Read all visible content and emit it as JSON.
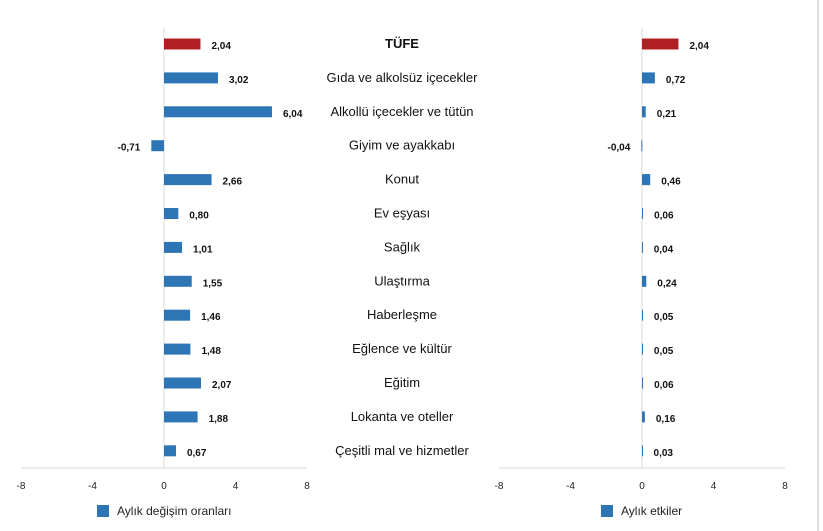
{
  "colors": {
    "highlight": "#B11F24",
    "bar": "#2E75B6",
    "axis": "#D9D9D9",
    "right_edge": "#BFBFBF"
  },
  "categories": [
    "TÜFE",
    "Gıda ve alkolsüz içecekler",
    "Alkollü içecekler ve tütün",
    "Giyim ve ayakkabı",
    "Konut",
    "Ev eşyası",
    "Sağlık",
    "Ulaştırma",
    "Haberleşme",
    "Eğlence ve kültür",
    "Eğitim",
    "Lokanta ve oteller",
    "Çeşitli mal ve hizmetler"
  ],
  "chart_data": [
    {
      "type": "bar",
      "orientation": "horizontal",
      "categories": [
        "TÜFE",
        "Gıda ve alkolsüz içecekler",
        "Alkollü içecekler ve tütün",
        "Giyim ve ayakkabı",
        "Konut",
        "Ev eşyası",
        "Sağlık",
        "Ulaştırma",
        "Haberleşme",
        "Eğlence ve kültür",
        "Eğitim",
        "Lokanta ve oteller",
        "Çeşitli mal ve hizmetler"
      ],
      "values": [
        2.04,
        3.02,
        6.04,
        -0.71,
        2.66,
        0.8,
        1.01,
        1.55,
        1.46,
        1.48,
        2.07,
        1.88,
        0.67
      ],
      "labels": [
        "2,04",
        "3,02",
        "6,04",
        "-0,71",
        "2,66",
        "0,80",
        "1,01",
        "1,55",
        "1,46",
        "1,48",
        "2,07",
        "1,88",
        "0,67"
      ],
      "highlight_index": 0,
      "xlim": [
        -8,
        8
      ],
      "xticks": [
        "-8",
        "-4",
        "0",
        "4",
        "8"
      ],
      "legend": {
        "label": "Aylık değişim oranları",
        "position": "bottom-left"
      }
    },
    {
      "type": "bar",
      "orientation": "horizontal",
      "categories": [
        "TÜFE",
        "Gıda ve alkolsüz içecekler",
        "Alkollü içecekler ve tütün",
        "Giyim ve ayakkabı",
        "Konut",
        "Ev eşyası",
        "Sağlık",
        "Ulaştırma",
        "Haberleşme",
        "Eğlence ve kültür",
        "Eğitim",
        "Lokanta ve oteller",
        "Çeşitli mal ve hizmetler"
      ],
      "values": [
        2.04,
        0.72,
        0.21,
        -0.04,
        0.46,
        0.06,
        0.04,
        0.24,
        0.05,
        0.05,
        0.06,
        0.16,
        0.03
      ],
      "labels": [
        "2,04",
        "0,72",
        "0,21",
        "-0,04",
        "0,46",
        "0,06",
        "0,04",
        "0,24",
        "0,05",
        "0,05",
        "0,06",
        "0,16",
        "0,03"
      ],
      "highlight_index": 0,
      "xlim": [
        -8,
        8
      ],
      "xticks": [
        "-8",
        "-4",
        "0",
        "4",
        "8"
      ],
      "legend": {
        "label": "Aylık etkiler",
        "position": "bottom-left"
      }
    }
  ]
}
